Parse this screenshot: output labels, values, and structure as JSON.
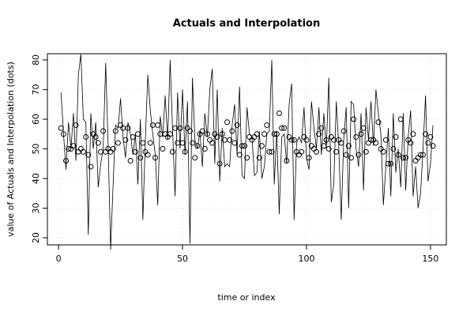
{
  "chart_data": {
    "type": "line",
    "title": "Actuals and Interpolation",
    "xlabel": "time or index",
    "ylabel": "value of Actuals and Interpolation (dots)",
    "x": [
      1,
      2,
      3,
      4,
      5,
      6,
      7,
      8,
      9,
      10,
      11,
      12,
      13,
      14,
      15,
      16,
      17,
      18,
      19,
      20,
      21,
      22,
      23,
      24,
      25,
      26,
      27,
      28,
      29,
      30,
      31,
      32,
      33,
      34,
      35,
      36,
      37,
      38,
      39,
      40,
      41,
      42,
      43,
      44,
      45,
      46,
      47,
      48,
      49,
      50,
      51,
      52,
      53,
      54,
      55,
      56,
      57,
      58,
      59,
      60,
      61,
      62,
      63,
      64,
      65,
      66,
      67,
      68,
      69,
      70,
      71,
      72,
      73,
      74,
      75,
      76,
      77,
      78,
      79,
      80,
      81,
      82,
      83,
      84,
      85,
      86,
      87,
      88,
      89,
      90,
      91,
      92,
      93,
      94,
      95,
      96,
      97,
      98,
      99,
      100,
      101,
      102,
      103,
      104,
      105,
      106,
      107,
      108,
      109,
      110,
      111,
      112,
      113,
      114,
      115,
      116,
      117,
      118,
      119,
      120,
      121,
      122,
      123,
      124,
      125,
      126,
      127,
      128,
      129,
      130,
      131,
      132,
      133,
      134,
      135,
      136,
      137,
      138,
      139,
      140,
      141,
      142,
      143,
      144,
      145,
      146,
      147,
      148,
      149,
      150,
      151
    ],
    "series": [
      {
        "name": "Actuals",
        "color": "#000000",
        "style": "line",
        "values": [
          69,
          55,
          43,
          59,
          50,
          62,
          46,
          75,
          82,
          60,
          59,
          21,
          62,
          50,
          59,
          37,
          45,
          50,
          79,
          51,
          16,
          38,
          58,
          57,
          67,
          54,
          47,
          59,
          55,
          48,
          55,
          38,
          60,
          26,
          53,
          75,
          63,
          55,
          48,
          31,
          61,
          54,
          68,
          53,
          80,
          56,
          34,
          69,
          50,
          70,
          48,
          66,
          18,
          74,
          53,
          50,
          56,
          44,
          62,
          54,
          70,
          77,
          45,
          70,
          39,
          57,
          44,
          45,
          44,
          58,
          65,
          48,
          71,
          41,
          40,
          64,
          55,
          54,
          41,
          42,
          56,
          40,
          44,
          55,
          56,
          80,
          38,
          56,
          28,
          54,
          55,
          45,
          65,
          72,
          26,
          52,
          54,
          52,
          64,
          47,
          43,
          66,
          57,
          50,
          64,
          48,
          62,
          50,
          74,
          32,
          38,
          66,
          51,
          26,
          53,
          64,
          30,
          66,
          65,
          50,
          44,
          62,
          36,
          64,
          53,
          66,
          51,
          70,
          62,
          55,
          31,
          44,
          57,
          34,
          62,
          42,
          50,
          37,
          62,
          36,
          54,
          63,
          34,
          44,
          30,
          35,
          50,
          68,
          39,
          45,
          58
        ]
      },
      {
        "name": "Interpolation",
        "color": "#000000",
        "style": "dots",
        "values": [
          57,
          55,
          46,
          50,
          50,
          51,
          58,
          49,
          50,
          49,
          54,
          48,
          44,
          55,
          54,
          52,
          49,
          56,
          49,
          50,
          49,
          50,
          56,
          52,
          58,
          57,
          53,
          57,
          46,
          54,
          49,
          55,
          47,
          52,
          49,
          48,
          52,
          58,
          47,
          58,
          55,
          50,
          55,
          54,
          55,
          49,
          57,
          52,
          57,
          52,
          49,
          57,
          56,
          52,
          47,
          51,
          55,
          56,
          50,
          55,
          53,
          52,
          55,
          54,
          45,
          55,
          53,
          59,
          53,
          56,
          52,
          58,
          48,
          51,
          51,
          47,
          54,
          53,
          54,
          55,
          47,
          51,
          55,
          58,
          49,
          49,
          55,
          55,
          62,
          57,
          57,
          46,
          54,
          53,
          53,
          49,
          48,
          49,
          54,
          53,
          47,
          51,
          50,
          49,
          55,
          57,
          51,
          53,
          50,
          54,
          53,
          49,
          53,
          52,
          56,
          48,
          51,
          47,
          60,
          54,
          48,
          55,
          57,
          49,
          52,
          53,
          53,
          52,
          59,
          50,
          49,
          53,
          45,
          45,
          50,
          54,
          48,
          60,
          47,
          47,
          53,
          52,
          55,
          46,
          47,
          48,
          48,
          55,
          52,
          54,
          51
        ]
      }
    ],
    "xlim": [
      -4.5,
      156.4
    ],
    "ylim": [
      17.6,
      82.1
    ],
    "xticks": [
      0,
      50,
      100,
      150
    ],
    "yticks": [
      20,
      30,
      40,
      50,
      60,
      70,
      80
    ],
    "grid": true
  }
}
